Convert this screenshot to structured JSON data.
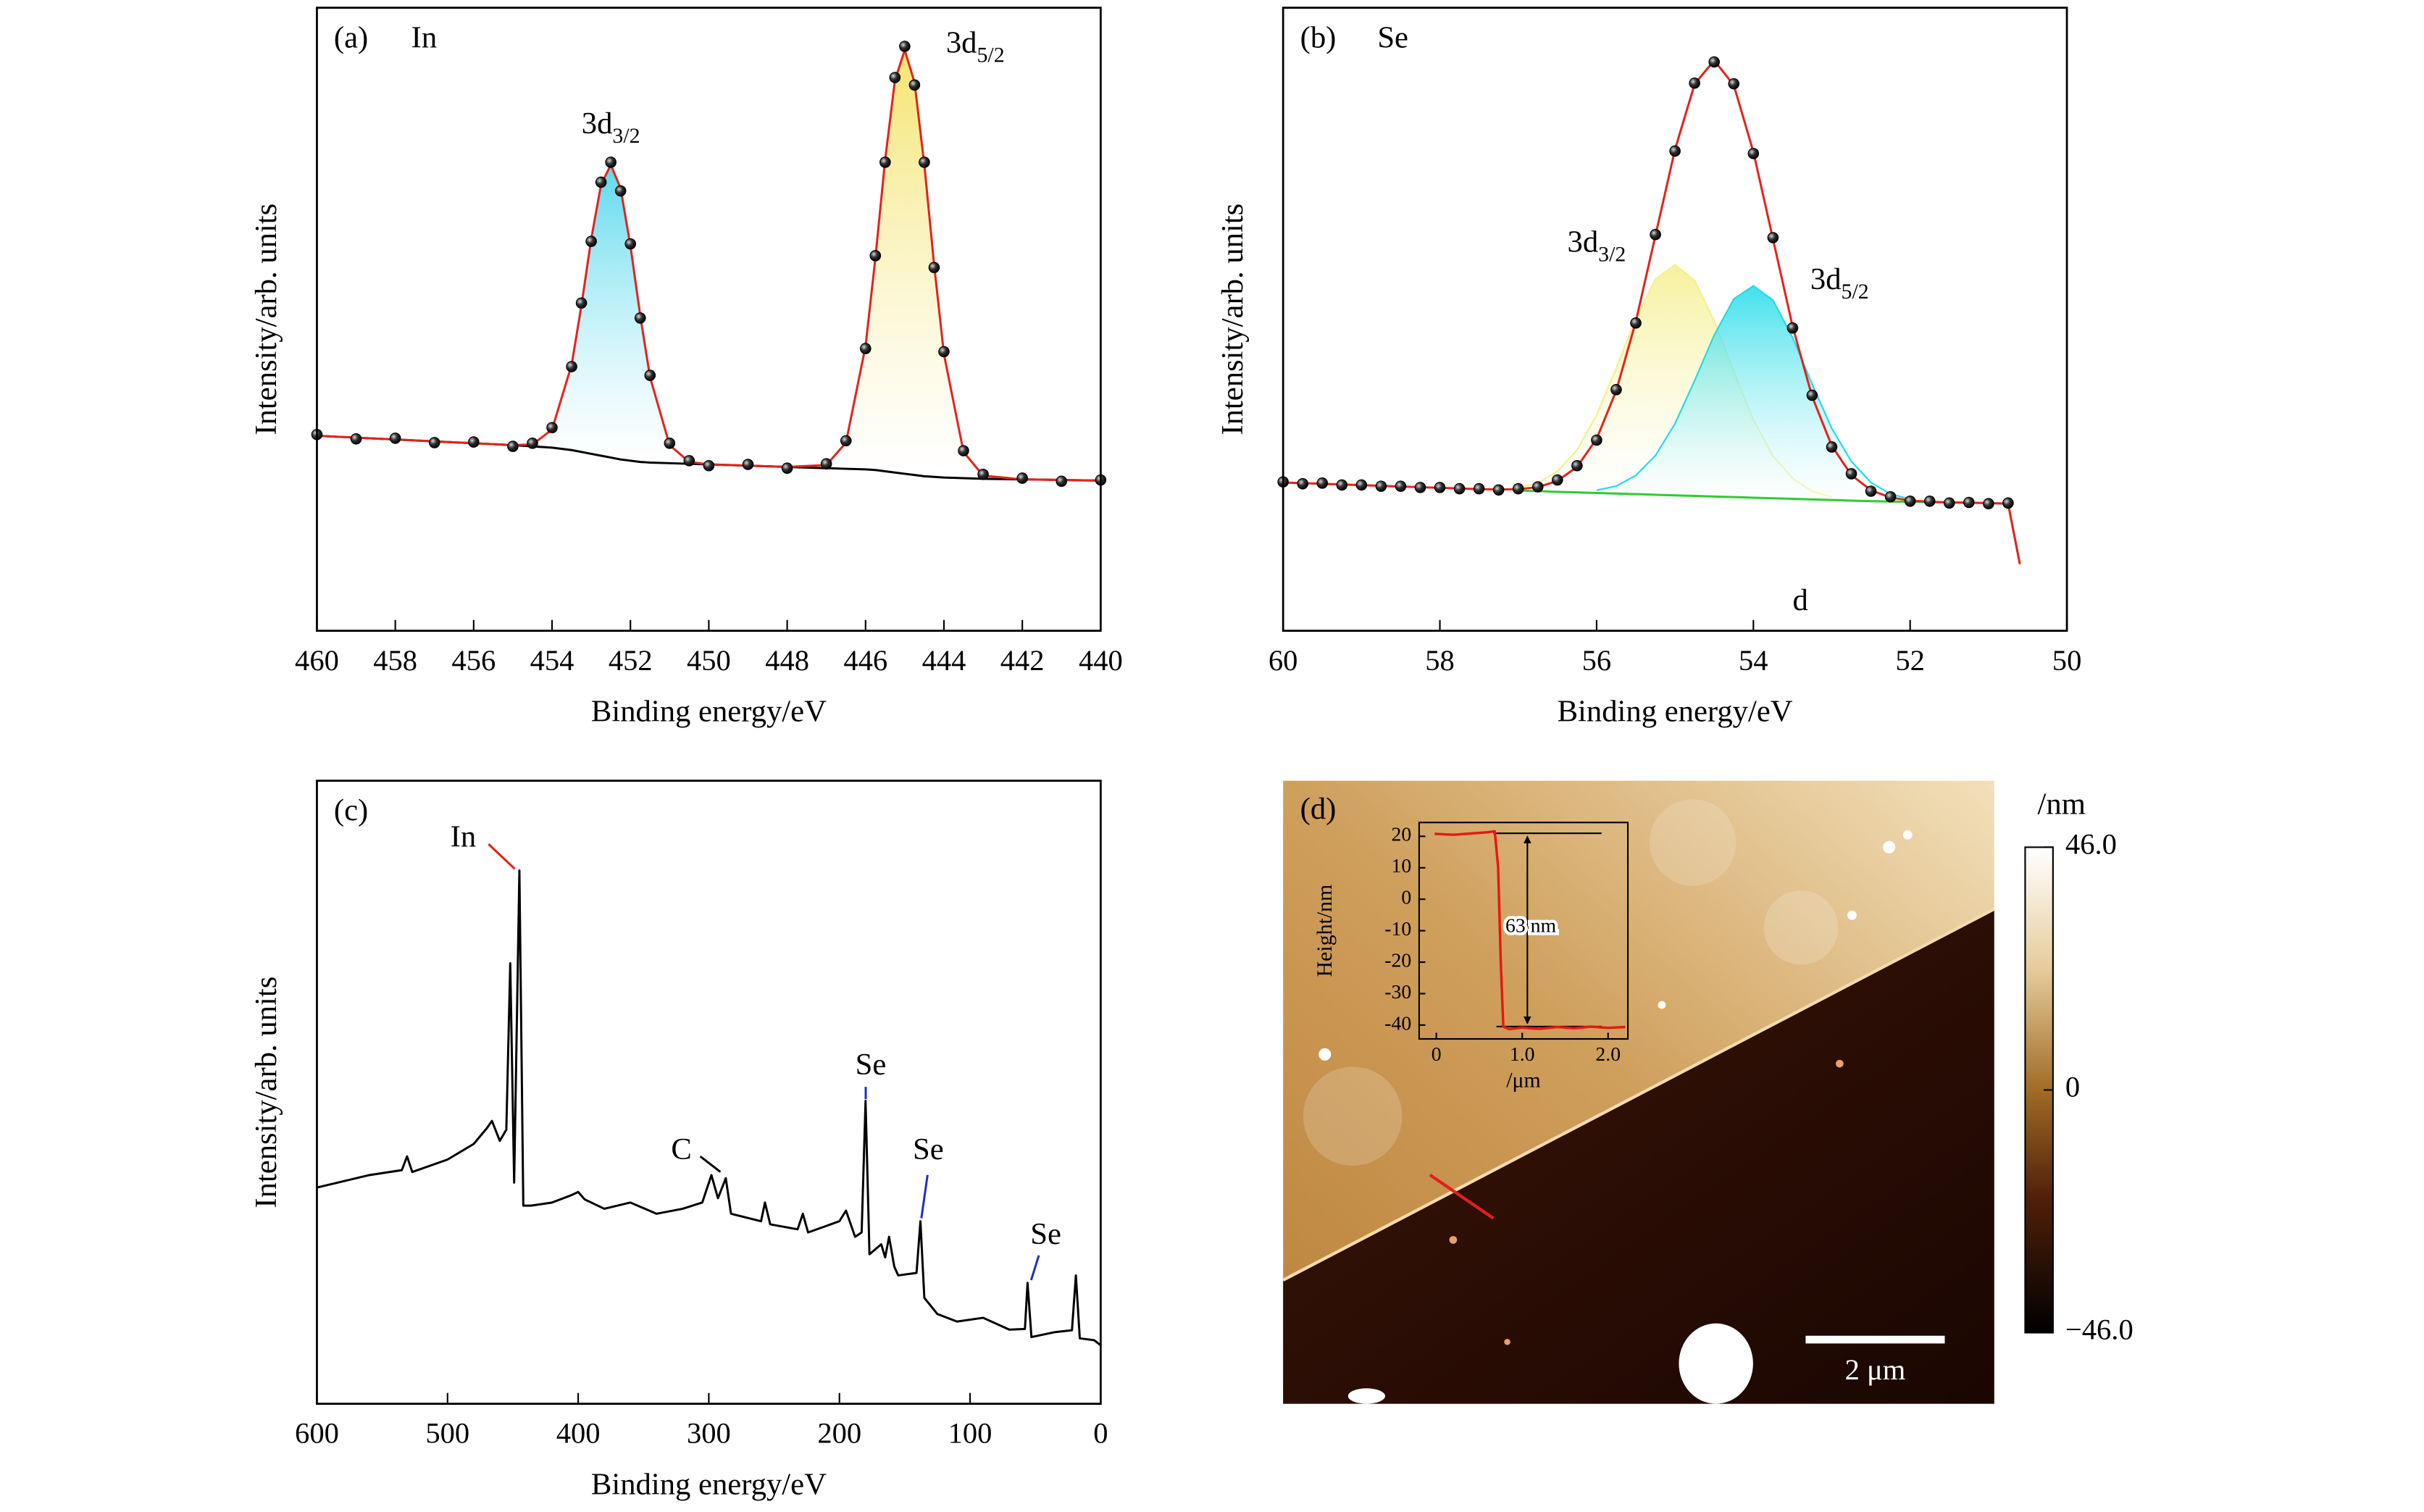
{
  "chart_data": [
    {
      "type": "line",
      "panel_label": "(a)",
      "title": "In",
      "xlabel": "Binding energy/eV",
      "ylabel": "Intensity/arb. units",
      "xlim": [
        460,
        440
      ],
      "ylim": [
        0,
        100
      ],
      "xticks": [
        460,
        458,
        456,
        454,
        452,
        450,
        448,
        446,
        444,
        442,
        440
      ],
      "x": [
        460,
        459,
        458,
        457,
        456,
        455,
        454.5,
        454,
        453.5,
        453.25,
        453,
        452.75,
        452.5,
        452.25,
        452,
        451.75,
        451.5,
        451,
        450.5,
        450,
        449,
        448,
        447,
        446.5,
        446,
        445.75,
        445.5,
        445.25,
        445,
        444.75,
        444.5,
        444.25,
        444,
        443.5,
        443,
        442,
        441,
        440
      ],
      "series": [
        {
          "color": "#3fd3ea",
          "fill_to": 2,
          "values": [
            null,
            null,
            null,
            null,
            null,
            null,
            29.9,
            32.3,
            42.7,
            52.2,
            62.9,
            71.6,
            74.8,
            71.0,
            61.8,
            50.6,
            40.7,
            29.8,
            27.1,
            null,
            null,
            null,
            null,
            null,
            null,
            null,
            null,
            null,
            null,
            null,
            null,
            null,
            null,
            null,
            null,
            null,
            null,
            null
          ]
        },
        {
          "color": "#f2df55",
          "fill_to": 2,
          "values": [
            null,
            null,
            null,
            null,
            null,
            null,
            null,
            null,
            null,
            null,
            null,
            null,
            null,
            null,
            null,
            null,
            null,
            null,
            null,
            null,
            null,
            null,
            26.6,
            30.2,
            45.7,
            59.8,
            75.6,
            88.4,
            93.2,
            88.0,
            74.8,
            58.7,
            44.4,
            28.7,
            24.9,
            null,
            null,
            null
          ]
        },
        {
          "color": "#000000",
          "values": [
            31.3,
            31.0,
            30.7,
            30.4,
            30.1,
            29.8,
            29.6,
            29.4,
            29.0,
            28.7,
            28.4,
            28.1,
            27.8,
            27.5,
            27.3,
            27.1,
            27.0,
            26.9,
            26.8,
            26.7,
            26.5,
            26.3,
            26.1,
            26.0,
            25.9,
            25.8,
            25.6,
            25.4,
            25.2,
            25.0,
            24.8,
            24.7,
            24.6,
            24.5,
            24.4,
            24.3,
            24.2,
            24.1
          ]
        },
        {
          "color": "#e3221c",
          "values": [
            31.3,
            31.0,
            30.7,
            30.4,
            30.1,
            29.8,
            29.9,
            32.3,
            42.7,
            52.2,
            62.9,
            71.6,
            74.8,
            71.0,
            61.8,
            50.6,
            40.7,
            29.8,
            27.1,
            26.7,
            26.5,
            26.3,
            26.6,
            30.2,
            45.7,
            59.8,
            75.6,
            88.4,
            93.2,
            88.0,
            74.8,
            58.7,
            44.4,
            28.7,
            24.9,
            24.3,
            24.2,
            24.1
          ]
        },
        {
          "color": "#000000",
          "marker": "circle",
          "values": [
            31.5,
            30.8,
            30.9,
            30.2,
            30.3,
            29.6,
            30.1,
            32.6,
            42.4,
            52.6,
            62.5,
            72.0,
            75.2,
            70.6,
            62.1,
            50.2,
            41.0,
            30.1,
            27.3,
            26.5,
            26.7,
            26.1,
            26.8,
            30.5,
            45.3,
            60.2,
            75.2,
            88.8,
            93.8,
            87.6,
            75.2,
            58.3,
            44.8,
            28.9,
            25.1,
            24.5,
            24.0,
            24.2
          ]
        }
      ],
      "annotations": [
        {
          "text": "3d",
          "sub": "3/2",
          "x": 452.5,
          "y": 81
        },
        {
          "text": "3d",
          "sub": "5/2",
          "x": 443.2,
          "y": 94
        }
      ]
    },
    {
      "type": "line",
      "panel_label": "(b)",
      "title": "Se",
      "xlabel": "Binding energy/eV",
      "ylabel": "Intensity/arb. units",
      "xlim": [
        60,
        50
      ],
      "ylim": [
        0,
        100
      ],
      "xticks": [
        60,
        58,
        56,
        54,
        52,
        50
      ],
      "x": [
        60,
        59.75,
        59.5,
        59.25,
        59,
        58.75,
        58.5,
        58.25,
        58,
        57.75,
        57.5,
        57.25,
        57,
        56.75,
        56.5,
        56.25,
        56,
        55.75,
        55.5,
        55.25,
        55,
        54.75,
        54.5,
        54.25,
        54,
        53.75,
        53.5,
        53.25,
        53,
        52.75,
        52.5,
        52.25,
        52,
        51.75,
        51.5,
        51.25,
        51,
        50.75,
        50.6
      ],
      "series": [
        {
          "color": "#f5ef8c",
          "fill_to": 2,
          "values": [
            null,
            null,
            null,
            null,
            null,
            null,
            null,
            null,
            null,
            null,
            null,
            null,
            23.01,
            23.71,
            25.6,
            29.01,
            34.61,
            42.12,
            50.13,
            56.43,
            58.74,
            56.24,
            49.75,
            41.56,
            33.86,
            28.07,
            24.48,
            22.38,
            21.49,
            null,
            null,
            null,
            null,
            null,
            null,
            null,
            null,
            null,
            null
          ]
        },
        {
          "color": "#1fdbe8",
          "fill_to": 2,
          "values": [
            null,
            null,
            null,
            null,
            null,
            null,
            null,
            null,
            null,
            null,
            null,
            null,
            null,
            null,
            null,
            null,
            22.55,
            23.22,
            24.93,
            28.13,
            33.24,
            40.14,
            47.45,
            53.26,
            55.36,
            53.07,
            47.08,
            39.58,
            32.49,
            27.19,
            23.8,
            21.95,
            21.14,
            null,
            null,
            null,
            null,
            null,
            null
          ]
        },
        {
          "color": "#2fcc2f",
          "values": [
            null,
            null,
            null,
            null,
            null,
            null,
            null,
            null,
            null,
            null,
            null,
            null,
            22.51,
            22.41,
            22.3,
            22.21,
            22.11,
            22.02,
            21.93,
            21.83,
            21.74,
            21.64,
            21.55,
            21.46,
            21.36,
            21.27,
            21.18,
            21.08,
            20.99,
            20.89,
            20.8,
            20.75,
            20.7,
            20.65,
            20.6,
            20.55,
            20.5,
            20.4,
            10.7
          ]
        },
        {
          "color": "#e3221c",
          "values": [
            23.8,
            23.69,
            23.59,
            23.48,
            23.37,
            23.26,
            23.16,
            23.05,
            22.94,
            22.84,
            22.73,
            22.68,
            22.72,
            23.05,
            24.05,
            26.31,
            30.81,
            38.52,
            49.63,
            63.43,
            77.24,
            87.74,
            91.55,
            87.56,
            76.86,
            62.87,
            48.88,
            37.58,
            29.69,
            24.99,
            22.55,
            21.39,
            20.91,
            20.71,
            20.6,
            20.55,
            20.5,
            20.4,
            10.7
          ]
        },
        {
          "color": "#000000",
          "marker": "circle",
          "values": [
            23.9,
            23.6,
            23.7,
            23.4,
            23.4,
            23.2,
            23.2,
            23.0,
            23.0,
            22.8,
            22.8,
            22.6,
            22.8,
            23.1,
            24.2,
            26.5,
            30.6,
            38.7,
            49.4,
            63.6,
            77.0,
            87.9,
            91.3,
            87.8,
            76.6,
            63.1,
            48.6,
            37.8,
            29.5,
            25.2,
            22.4,
            21.5,
            20.8,
            20.8,
            20.5,
            20.6,
            20.4,
            20.5,
            null
          ]
        }
      ],
      "annotations": [
        {
          "text": "3d",
          "sub": "3/2",
          "x": 56.0,
          "y": 62
        },
        {
          "text": "3d",
          "sub": "5/2",
          "x": 52.9,
          "y": 56
        },
        {
          "text": "d",
          "x": 53.4,
          "y": 4.5
        }
      ]
    },
    {
      "type": "line",
      "panel_label": "(c)",
      "xlabel": "Binding energy/eV",
      "ylabel": "Intensity/arb. units",
      "xlim": [
        600,
        0
      ],
      "ylim": [
        0,
        100
      ],
      "xticks": [
        600,
        500,
        400,
        300,
        200,
        100,
        0
      ],
      "x": [
        600,
        560,
        535,
        531,
        527,
        500,
        480,
        470,
        466,
        460,
        455,
        452,
        449,
        445,
        442,
        436,
        420,
        405,
        400,
        395,
        380,
        360,
        340,
        320,
        305,
        298,
        293,
        287,
        283,
        260,
        257,
        253,
        232,
        228,
        224,
        200,
        195,
        188,
        183,
        180,
        177,
        168,
        165,
        162,
        158,
        155,
        141,
        138,
        135,
        125,
        110,
        90,
        70,
        58,
        56,
        53,
        35,
        22,
        19,
        16,
        5,
        0
      ],
      "series": [
        {
          "color": "#000000",
          "values": [
            34.7,
            36.7,
            37.5,
            39.7,
            37.2,
            39.2,
            41.7,
            44.2,
            45.4,
            42.2,
            44.0,
            70.7,
            35.5,
            85.6,
            31.8,
            31.8,
            32.3,
            33.5,
            34.0,
            32.8,
            31.3,
            32.3,
            30.5,
            31.3,
            32.3,
            36.7,
            33.0,
            36.2,
            30.5,
            29.3,
            32.3,
            28.8,
            28.0,
            30.5,
            27.5,
            29.3,
            31.0,
            26.8,
            27.5,
            48.6,
            24.0,
            25.6,
            23.5,
            26.8,
            22.0,
            20.6,
            21.0,
            29.3,
            17.0,
            14.4,
            13.2,
            13.8,
            11.9,
            12.0,
            19.4,
            10.7,
            11.5,
            11.8,
            20.6,
            10.5,
            10.2,
            9.4
          ]
        }
      ],
      "annotations": [
        {
          "text": "In",
          "color": "#e0201b",
          "x": 488,
          "y": 90.6
        },
        {
          "text": "C",
          "color": "#000000",
          "x": 321,
          "y": 40.4
        },
        {
          "text": "Se",
          "color": "#1f2fbf",
          "x": 176,
          "y": 54
        },
        {
          "text": "Se",
          "color": "#1f2fbf",
          "x": 132,
          "y": 40.4
        },
        {
          "text": "Se",
          "color": "#1f2fbf",
          "x": 42,
          "y": 26.8
        }
      ]
    },
    {
      "type": "image",
      "panel_label": "(d)",
      "colorbar_label": "/nm",
      "clim": [
        -46,
        46
      ],
      "cticks": [
        {
          "value": 46,
          "label": "46.0"
        },
        0,
        {
          "value": -46,
          "label": "−46.0"
        }
      ],
      "scale_bar_label": "2 μm"
    },
    {
      "type": "line",
      "xlabel": "/μm",
      "ylabel": "Height/nm",
      "xlim": [
        -0.2,
        2.23
      ],
      "ylim": [
        -44.4,
        24.4
      ],
      "xticks": [
        0,
        {
          "value": 1,
          "label": "1.0"
        },
        {
          "value": 2,
          "label": "2.0"
        }
      ],
      "yticks": [
        20,
        10,
        0,
        -10,
        -20,
        -30,
        -40
      ],
      "x": [
        -0.02,
        0.2,
        0.4,
        0.6,
        0.68,
        0.72,
        0.75,
        0.78,
        0.85,
        1.0,
        1.2,
        1.4,
        1.6,
        1.8,
        2.0,
        2.2
      ],
      "series": [
        {
          "color": "#e8170f",
          "values": [
            20.8,
            20.5,
            20.9,
            21.3,
            21.6,
            10,
            -20,
            -40.5,
            -41.3,
            -40.8,
            -41.2,
            -40.6,
            -41.0,
            -40.5,
            -40.9,
            -40.6
          ]
        }
      ],
      "annotations": [
        {
          "text": "63 nm",
          "x": 1.1,
          "y": -9
        }
      ]
    }
  ]
}
